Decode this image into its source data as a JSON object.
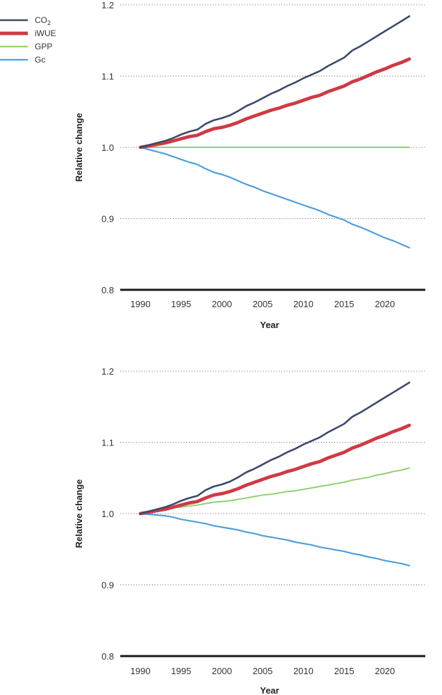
{
  "legend": [
    {
      "key": "co2",
      "label": "CO",
      "subscript": "2",
      "color": "#3a4a6b"
    },
    {
      "key": "iwue",
      "label": "iWUE",
      "color": "#cf3a44"
    },
    {
      "key": "gpp",
      "label": "GPP",
      "color": "#8fd16f"
    },
    {
      "key": "gc",
      "label": "Gc",
      "color": "#4d9fdc"
    }
  ],
  "chart_data": [
    {
      "type": "line",
      "xlabel": "Year",
      "ylabel": "Relative change",
      "xlim": [
        1990,
        2023
      ],
      "ylim": [
        0.8,
        1.2
      ],
      "xticks": [
        1990,
        1995,
        2000,
        2005,
        2010,
        2015,
        2020
      ],
      "yticks": [
        0.8,
        0.9,
        1.0,
        1.1,
        1.2
      ],
      "grid": "dotted horizontal",
      "x": [
        1990,
        1991,
        1992,
        1993,
        1994,
        1995,
        1996,
        1997,
        1998,
        1999,
        2000,
        2001,
        2002,
        2003,
        2004,
        2005,
        2006,
        2007,
        2008,
        2009,
        2010,
        2011,
        2012,
        2013,
        2014,
        2015,
        2016,
        2017,
        2018,
        2019,
        2020,
        2021,
        2022,
        2023
      ],
      "series": [
        {
          "name": "CO2",
          "key": "co2",
          "values": [
            1.0,
            1.003,
            1.006,
            1.009,
            1.013,
            1.018,
            1.022,
            1.025,
            1.033,
            1.038,
            1.041,
            1.045,
            1.051,
            1.058,
            1.063,
            1.069,
            1.075,
            1.08,
            1.086,
            1.091,
            1.097,
            1.102,
            1.107,
            1.114,
            1.12,
            1.126,
            1.136,
            1.142,
            1.149,
            1.156,
            1.163,
            1.17,
            1.177,
            1.184
          ]
        },
        {
          "name": "iWUE",
          "key": "iwue",
          "values": [
            1.0,
            1.002,
            1.004,
            1.006,
            1.009,
            1.012,
            1.015,
            1.017,
            1.022,
            1.026,
            1.028,
            1.031,
            1.035,
            1.04,
            1.044,
            1.048,
            1.052,
            1.055,
            1.059,
            1.062,
            1.066,
            1.07,
            1.073,
            1.078,
            1.082,
            1.086,
            1.092,
            1.096,
            1.101,
            1.106,
            1.11,
            1.115,
            1.119,
            1.124
          ]
        },
        {
          "name": "GPP",
          "key": "gpp",
          "values": [
            1.0,
            1.0,
            1.0,
            1.0,
            1.0,
            1.0,
            1.0,
            1.0,
            1.0,
            1.0,
            1.0,
            1.0,
            1.0,
            1.0,
            1.0,
            1.0,
            1.0,
            1.0,
            1.0,
            1.0,
            1.0,
            1.0,
            1.0,
            1.0,
            1.0,
            1.0,
            1.0,
            1.0,
            1.0,
            1.0,
            1.0,
            1.0,
            1.0,
            1.0
          ]
        },
        {
          "name": "Gc",
          "key": "gc",
          "values": [
            1.0,
            0.997,
            0.994,
            0.991,
            0.987,
            0.983,
            0.979,
            0.976,
            0.97,
            0.965,
            0.962,
            0.958,
            0.953,
            0.948,
            0.944,
            0.939,
            0.935,
            0.931,
            0.927,
            0.923,
            0.919,
            0.915,
            0.911,
            0.906,
            0.902,
            0.898,
            0.892,
            0.888,
            0.883,
            0.878,
            0.873,
            0.869,
            0.864,
            0.859
          ]
        }
      ]
    },
    {
      "type": "line",
      "xlabel": "Year",
      "ylabel": "Relative change",
      "xlim": [
        1990,
        2023
      ],
      "ylim": [
        0.8,
        1.2
      ],
      "xticks": [
        1990,
        1995,
        2000,
        2005,
        2010,
        2015,
        2020
      ],
      "yticks": [
        0.8,
        0.9,
        1.0,
        1.1,
        1.2
      ],
      "grid": "dotted horizontal",
      "x": [
        1990,
        1991,
        1992,
        1993,
        1994,
        1995,
        1996,
        1997,
        1998,
        1999,
        2000,
        2001,
        2002,
        2003,
        2004,
        2005,
        2006,
        2007,
        2008,
        2009,
        2010,
        2011,
        2012,
        2013,
        2014,
        2015,
        2016,
        2017,
        2018,
        2019,
        2020,
        2021,
        2022,
        2023
      ],
      "series": [
        {
          "name": "CO2",
          "key": "co2",
          "values": [
            1.0,
            1.003,
            1.006,
            1.009,
            1.013,
            1.018,
            1.022,
            1.025,
            1.033,
            1.038,
            1.041,
            1.045,
            1.051,
            1.058,
            1.063,
            1.069,
            1.075,
            1.08,
            1.086,
            1.091,
            1.097,
            1.102,
            1.107,
            1.114,
            1.12,
            1.126,
            1.136,
            1.142,
            1.149,
            1.156,
            1.163,
            1.17,
            1.177,
            1.184
          ]
        },
        {
          "name": "iWUE",
          "key": "iwue",
          "values": [
            1.0,
            1.002,
            1.004,
            1.006,
            1.009,
            1.012,
            1.015,
            1.017,
            1.022,
            1.026,
            1.028,
            1.031,
            1.035,
            1.04,
            1.044,
            1.048,
            1.052,
            1.055,
            1.059,
            1.062,
            1.066,
            1.07,
            1.073,
            1.078,
            1.082,
            1.086,
            1.092,
            1.096,
            1.101,
            1.106,
            1.11,
            1.115,
            1.119,
            1.124
          ]
        },
        {
          "name": "GPP",
          "key": "gpp",
          "values": [
            1.0,
            1.002,
            1.004,
            1.006,
            1.008,
            1.009,
            1.011,
            1.012,
            1.014,
            1.016,
            1.017,
            1.018,
            1.02,
            1.022,
            1.024,
            1.026,
            1.027,
            1.029,
            1.031,
            1.032,
            1.034,
            1.036,
            1.038,
            1.04,
            1.042,
            1.044,
            1.047,
            1.049,
            1.051,
            1.054,
            1.056,
            1.059,
            1.061,
            1.064
          ]
        },
        {
          "name": "Gc",
          "key": "gc",
          "values": [
            1.0,
            0.999,
            0.998,
            0.997,
            0.995,
            0.992,
            0.99,
            0.988,
            0.986,
            0.983,
            0.981,
            0.979,
            0.977,
            0.974,
            0.972,
            0.969,
            0.967,
            0.965,
            0.963,
            0.96,
            0.958,
            0.956,
            0.953,
            0.951,
            0.949,
            0.947,
            0.944,
            0.942,
            0.939,
            0.937,
            0.934,
            0.932,
            0.93,
            0.927
          ]
        }
      ]
    }
  ]
}
